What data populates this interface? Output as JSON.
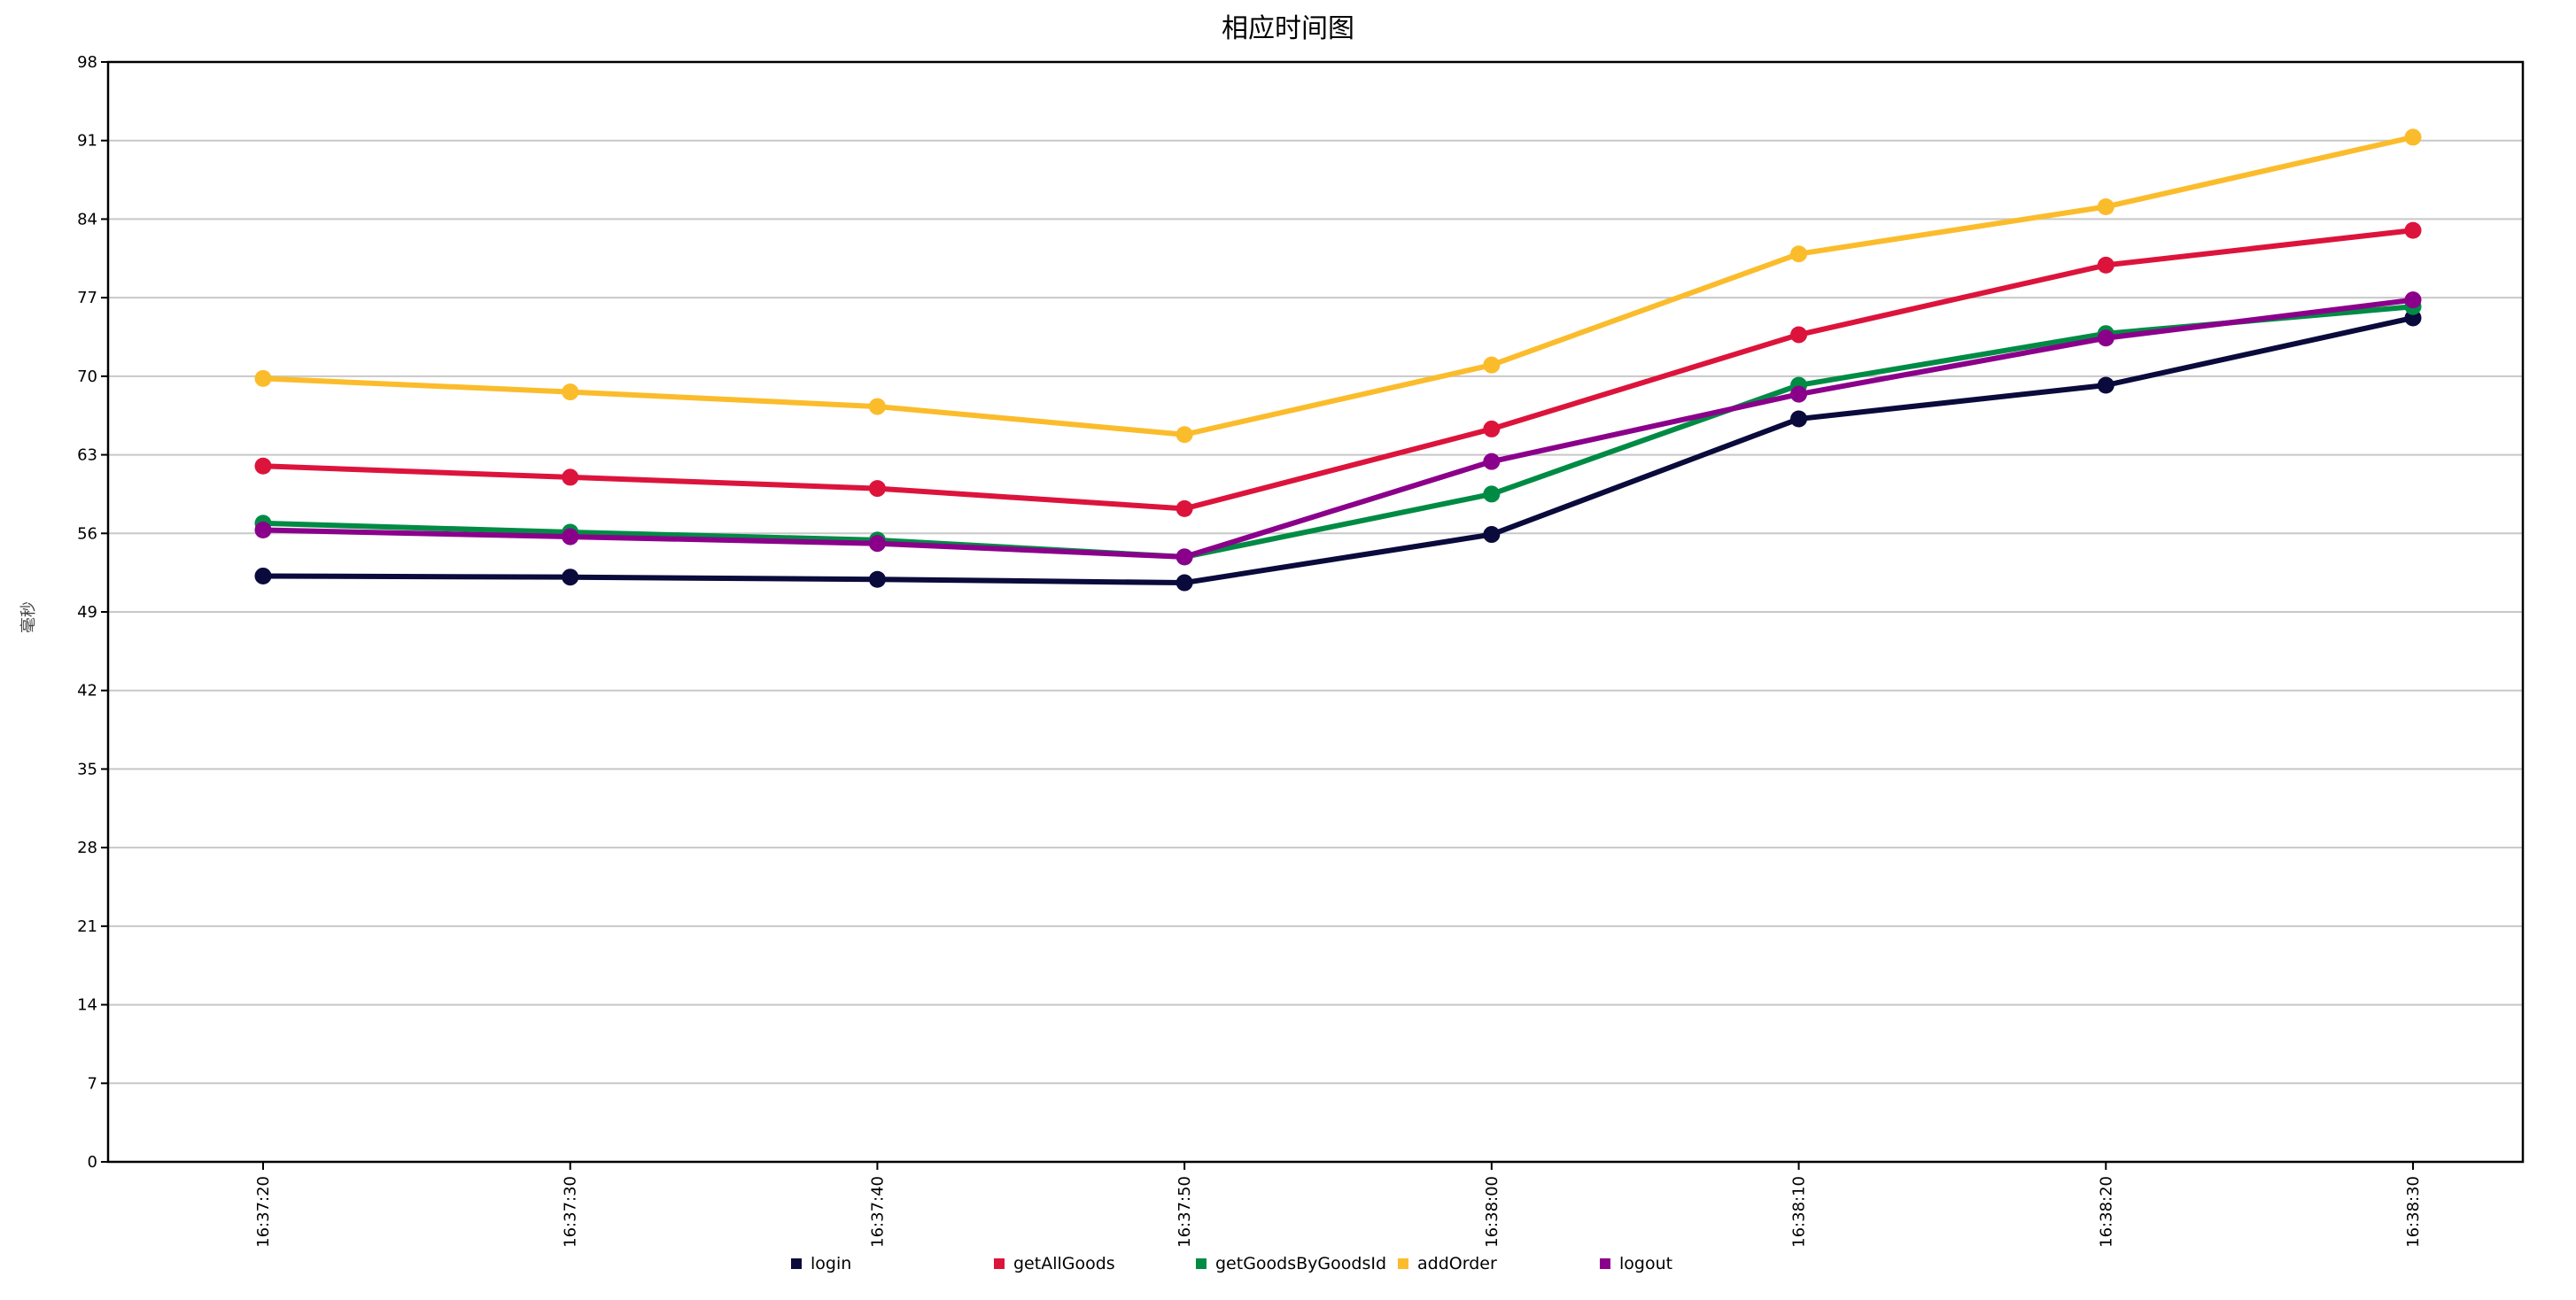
{
  "chart_data": {
    "type": "line",
    "title": "相应时间图",
    "xlabel": "",
    "ylabel": "毫秒",
    "ylim": [
      0,
      98
    ],
    "yticks": [
      0,
      7,
      14,
      21,
      28,
      35,
      42,
      49,
      56,
      63,
      70,
      77,
      84,
      91,
      98
    ],
    "grid": true,
    "legend_position": "bottom",
    "categories": [
      "16:37:20",
      "16:37:30",
      "16:37:40",
      "16:37:50",
      "16:38:00",
      "16:38:10",
      "16:38:20",
      "16:38:30"
    ],
    "series": [
      {
        "name": "login",
        "color": "#0a0a3c",
        "values": [
          52.2,
          52.1,
          51.9,
          51.6,
          55.9,
          66.2,
          69.2,
          75.2
        ]
      },
      {
        "name": "getAllGoods",
        "color": "#dc143c",
        "values": [
          62.0,
          61.0,
          60.0,
          58.2,
          65.3,
          73.7,
          79.9,
          83.0
        ]
      },
      {
        "name": "getGoodsByGoodsId",
        "color": "#008b45",
        "values": [
          56.9,
          56.1,
          55.4,
          53.9,
          59.5,
          69.2,
          73.8,
          76.2
        ]
      },
      {
        "name": "addOrder",
        "color": "#fbbc2c",
        "values": [
          69.8,
          68.6,
          67.3,
          64.8,
          71.0,
          80.9,
          85.1,
          91.3
        ]
      },
      {
        "name": "logout",
        "color": "#8b008b",
        "values": [
          56.3,
          55.7,
          55.1,
          53.9,
          62.4,
          68.4,
          73.4,
          76.8
        ]
      }
    ]
  }
}
